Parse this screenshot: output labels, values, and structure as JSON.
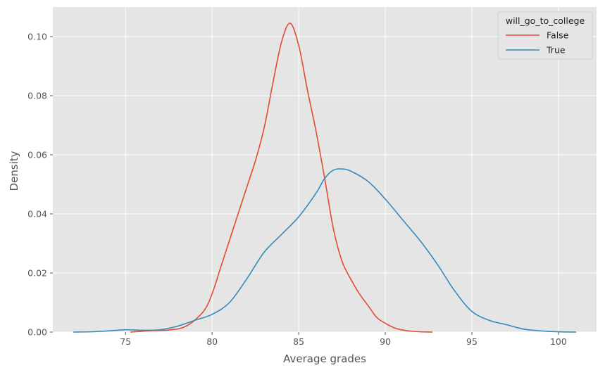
{
  "chart_data": {
    "type": "line",
    "title": "",
    "xlabel": "Average grades",
    "ylabel": "Density",
    "xlim": [
      70.8,
      102.2
    ],
    "ylim": [
      0.0,
      0.11
    ],
    "xticks": [
      75,
      80,
      85,
      90,
      95,
      100
    ],
    "xtick_labels": [
      "75",
      "80",
      "85",
      "90",
      "95",
      "100"
    ],
    "yticks": [
      0.0,
      0.02,
      0.04,
      0.06,
      0.08,
      0.1
    ],
    "ytick_labels": [
      "0.00",
      "0.02",
      "0.04",
      "0.06",
      "0.08",
      "0.10"
    ],
    "grid": true,
    "legend": {
      "title": "will_go_to_college",
      "position": "top-right"
    },
    "series": [
      {
        "name": "False",
        "color": "#E24A33",
        "x": [
          75.3,
          76.5,
          77.5,
          78.5,
          79.5,
          80.0,
          80.5,
          81.0,
          81.5,
          82.0,
          82.5,
          83.0,
          83.5,
          84.0,
          84.5,
          85.0,
          85.5,
          86.0,
          86.5,
          87.0,
          87.5,
          88.0,
          88.5,
          89.0,
          89.5,
          90.0,
          90.5,
          91.0,
          91.5,
          92.0,
          92.7
        ],
        "y": [
          0.0,
          0.0005,
          0.0007,
          0.002,
          0.007,
          0.013,
          0.022,
          0.031,
          0.04,
          0.049,
          0.058,
          0.069,
          0.084,
          0.098,
          0.1045,
          0.097,
          0.082,
          0.068,
          0.052,
          0.035,
          0.024,
          0.018,
          0.013,
          0.009,
          0.005,
          0.003,
          0.0015,
          0.0007,
          0.0003,
          0.0001,
          0.0
        ]
      },
      {
        "name": "True",
        "color": "#348ABD",
        "x": [
          72.0,
          73.0,
          74.0,
          75.0,
          76.0,
          77.0,
          78.0,
          79.0,
          80.0,
          81.0,
          82.0,
          83.0,
          84.0,
          85.0,
          86.0,
          86.5,
          87.0,
          87.5,
          88.0,
          89.0,
          90.0,
          91.0,
          92.0,
          93.0,
          94.0,
          95.0,
          96.0,
          97.0,
          98.0,
          99.0,
          100.0,
          101.0
        ],
        "y": [
          0.0,
          0.0001,
          0.0004,
          0.0008,
          0.0006,
          0.0008,
          0.002,
          0.004,
          0.006,
          0.01,
          0.018,
          0.027,
          0.033,
          0.039,
          0.047,
          0.052,
          0.0548,
          0.0552,
          0.0545,
          0.051,
          0.045,
          0.038,
          0.031,
          0.023,
          0.014,
          0.007,
          0.004,
          0.0025,
          0.001,
          0.0004,
          0.0001,
          0.0
        ]
      }
    ]
  }
}
